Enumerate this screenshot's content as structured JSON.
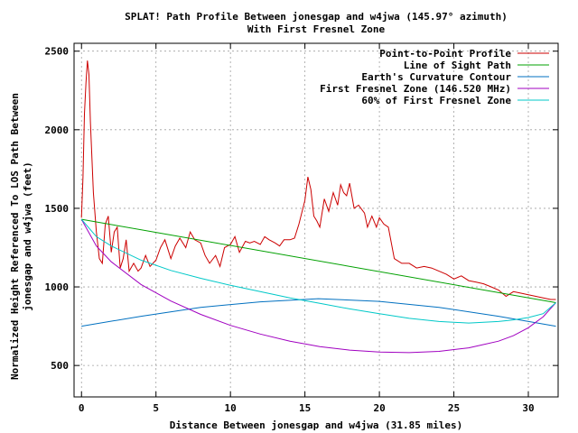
{
  "chart_data": {
    "type": "line",
    "title_line1": "SPLAT! Path Profile Between jonesgap and w4jwa (145.97° azimuth)",
    "title_line2": "With First Fresnel Zone",
    "xlabel": "Distance Between jonesgap and w4jwa (31.85 miles)",
    "ylabel_line1": "Normalized Height Referenced To LOS Path Between",
    "ylabel_line2": "jonesgap and w4jwa (feet)",
    "xlim": [
      -0.5,
      32
    ],
    "ylim": [
      300,
      2550
    ],
    "xticks": [
      0,
      5,
      10,
      15,
      20,
      25,
      30
    ],
    "yticks": [
      500,
      1000,
      1500,
      2000,
      2500
    ],
    "grid": true,
    "legend_position": "top-right",
    "series": [
      {
        "name": "Point-to-Point Profile",
        "color": "#cc0000",
        "x": [
          0,
          0.1,
          0.2,
          0.3,
          0.4,
          0.5,
          0.6,
          0.8,
          1.0,
          1.2,
          1.4,
          1.6,
          1.8,
          2.0,
          2.2,
          2.4,
          2.6,
          2.8,
          3.0,
          3.2,
          3.5,
          3.8,
          4.0,
          4.3,
          4.6,
          5.0,
          5.3,
          5.6,
          6.0,
          6.3,
          6.6,
          7.0,
          7.3,
          7.6,
          8.0,
          8.3,
          8.6,
          9.0,
          9.3,
          9.6,
          10.0,
          10.3,
          10.6,
          11.0,
          11.3,
          11.6,
          12.0,
          12.3,
          12.6,
          13.0,
          13.3,
          13.6,
          14.0,
          14.3,
          14.6,
          15.0,
          15.2,
          15.4,
          15.6,
          15.8,
          16.0,
          16.3,
          16.6,
          16.9,
          17.2,
          17.4,
          17.6,
          17.8,
          18.0,
          18.3,
          18.6,
          19.0,
          19.2,
          19.5,
          19.8,
          20.0,
          20.3,
          20.6,
          21.0,
          21.5,
          22.0,
          22.5,
          23.0,
          23.5,
          24.0,
          24.5,
          25.0,
          25.5,
          26.0,
          26.5,
          27.0,
          27.5,
          28.0,
          28.5,
          29.0,
          29.5,
          30.0,
          30.5,
          31.0,
          31.5,
          31.85
        ],
        "y": [
          1440,
          1700,
          2100,
          2300,
          2440,
          2350,
          2050,
          1600,
          1350,
          1180,
          1150,
          1400,
          1450,
          1220,
          1350,
          1380,
          1120,
          1180,
          1300,
          1100,
          1150,
          1100,
          1120,
          1200,
          1130,
          1170,
          1250,
          1300,
          1180,
          1260,
          1310,
          1250,
          1350,
          1300,
          1280,
          1200,
          1150,
          1200,
          1130,
          1250,
          1270,
          1320,
          1220,
          1290,
          1280,
          1290,
          1270,
          1320,
          1300,
          1280,
          1260,
          1300,
          1300,
          1310,
          1400,
          1550,
          1700,
          1620,
          1450,
          1420,
          1380,
          1560,
          1480,
          1600,
          1520,
          1650,
          1600,
          1580,
          1660,
          1500,
          1520,
          1470,
          1380,
          1450,
          1380,
          1440,
          1400,
          1380,
          1180,
          1150,
          1150,
          1120,
          1130,
          1120,
          1100,
          1080,
          1050,
          1070,
          1040,
          1030,
          1020,
          1000,
          980,
          940,
          970,
          960,
          950,
          940,
          930,
          920,
          920
        ]
      },
      {
        "name": "Line of Sight Path",
        "color": "#00a000",
        "x": [
          0,
          31.85
        ],
        "y": [
          1430,
          900
        ]
      },
      {
        "name": "Earth's Curvature Contour",
        "color": "#0070c0",
        "x": [
          0,
          4,
          8,
          12,
          15.9,
          20,
          24,
          28,
          31.85
        ],
        "y": [
          750,
          813,
          870,
          905,
          925,
          908,
          870,
          813,
          750
        ]
      },
      {
        "name": "First Fresnel Zone (146.520 MHz)",
        "color": "#a000c0",
        "x": [
          0,
          1,
          2,
          4,
          6,
          8,
          10,
          12,
          14,
          16,
          18,
          20,
          22,
          24,
          26,
          28,
          29,
          30,
          31,
          31.85
        ],
        "y": [
          1430,
          1260,
          1160,
          1015,
          910,
          825,
          755,
          700,
          655,
          620,
          598,
          585,
          582,
          590,
          612,
          655,
          690,
          740,
          810,
          900
        ]
      },
      {
        "name": "60% of First Fresnel Zone",
        "color": "#00c8c8",
        "x": [
          0,
          1,
          2,
          4,
          6,
          8,
          10,
          12,
          14,
          16,
          18,
          20,
          22,
          24,
          26,
          28,
          29,
          30,
          31,
          31.85
        ],
        "y": [
          1430,
          1320,
          1260,
          1170,
          1105,
          1055,
          1010,
          970,
          930,
          895,
          860,
          830,
          800,
          780,
          770,
          780,
          790,
          805,
          830,
          900
        ]
      }
    ]
  }
}
